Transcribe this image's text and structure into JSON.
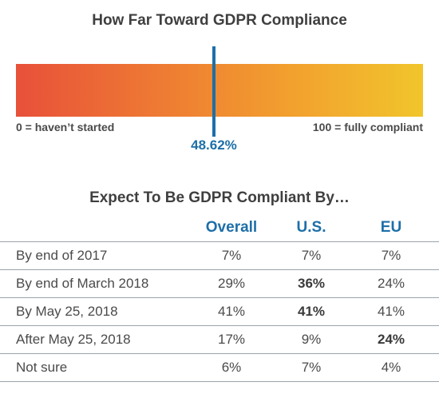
{
  "chart_data": [
    {
      "type": "gauge",
      "title": "How Far Toward GDPR Compliance",
      "min": 0,
      "max": 100,
      "value": 48.62,
      "value_label": "48.62%",
      "min_label": "0 = haven’t started",
      "max_label": "100 = fully compliant",
      "colors": {
        "start": "#e8503a",
        "end": "#f1c52c",
        "marker": "#1d6fa8"
      }
    },
    {
      "type": "table",
      "title": "Expect To Be GDPR Compliant By…",
      "columns": [
        "Overall",
        "U.S.",
        "EU"
      ],
      "rows": [
        {
          "label": "By end of 2017",
          "values": [
            "7%",
            "7%",
            "7%"
          ],
          "bold": [
            false,
            false,
            false
          ]
        },
        {
          "label": "By end of March 2018",
          "values": [
            "29%",
            "36%",
            "24%"
          ],
          "bold": [
            false,
            true,
            false
          ]
        },
        {
          "label": "By May 25, 2018",
          "values": [
            "41%",
            "41%",
            "41%"
          ],
          "bold": [
            false,
            true,
            false
          ]
        },
        {
          "label": "After May 25, 2018",
          "values": [
            "17%",
            "9%",
            "24%"
          ],
          "bold": [
            false,
            false,
            true
          ]
        },
        {
          "label": "Not sure",
          "values": [
            "6%",
            "7%",
            "4%"
          ],
          "bold": [
            false,
            false,
            false
          ]
        }
      ],
      "colors": {
        "header": "#1d6fa8",
        "rule": "#9aa3ab"
      }
    }
  ]
}
